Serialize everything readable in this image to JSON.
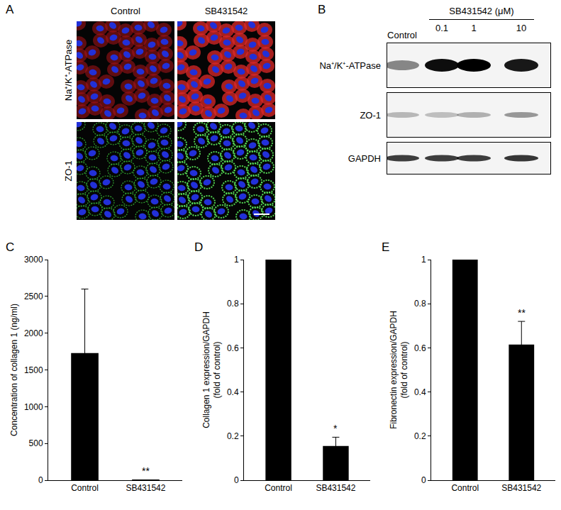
{
  "panels": {
    "A": {
      "label": "A",
      "columns": [
        "Control",
        "SB431542"
      ],
      "rows": [
        "Na⁺/K⁺-ATPase",
        "ZO-1"
      ]
    },
    "B": {
      "label": "B",
      "group_label": "SB431542 (μM)",
      "lanes": [
        "Control",
        "0.1",
        "1",
        "10"
      ],
      "rows": [
        "Na⁺/K⁺-ATPase",
        "ZO-1",
        "GAPDH"
      ]
    }
  },
  "chart_data": [
    {
      "type": "bar",
      "categories": [
        "Control",
        "SB431542"
      ],
      "values": [
        1730,
        10
      ],
      "errors": [
        870,
        null
      ],
      "color": "#000000",
      "ylabel": [
        "Concentration of collagen 1 (ng/ml)"
      ],
      "ylim": [
        0,
        3000
      ],
      "yticks": [
        0,
        500,
        1000,
        1500,
        2000,
        2500,
        3000
      ],
      "grid": false,
      "annotations": [
        {
          "text": "C"
        },
        {
          "text": "**",
          "x": "SB431542"
        }
      ]
    },
    {
      "type": "bar",
      "categories": [
        "Control",
        "SB431542"
      ],
      "values": [
        1,
        0.155
      ],
      "errors": [
        null,
        0.04
      ],
      "color": "#000000",
      "ylabel": [
        "Collagen 1 expression/GAPDH",
        "(fold of control)"
      ],
      "ylim": [
        0,
        1
      ],
      "yticks": [
        0,
        0.2,
        0.4,
        0.6,
        0.8,
        1
      ],
      "grid": false,
      "annotations": [
        {
          "text": "D"
        },
        {
          "text": "*",
          "x": "SB431542"
        }
      ]
    },
    {
      "type": "bar",
      "categories": [
        "Control",
        "SB431542"
      ],
      "values": [
        1,
        0.615
      ],
      "errors": [
        null,
        0.105
      ],
      "color": "#000000",
      "ylabel": [
        "Fibronectin expression/GAPDH",
        "(fold of control)"
      ],
      "ylim": [
        0,
        1
      ],
      "yticks": [
        0,
        0.2,
        0.4,
        0.6,
        0.8,
        1
      ],
      "grid": false,
      "annotations": [
        {
          "text": "E"
        },
        {
          "text": "**",
          "x": "SB431542"
        }
      ]
    }
  ]
}
